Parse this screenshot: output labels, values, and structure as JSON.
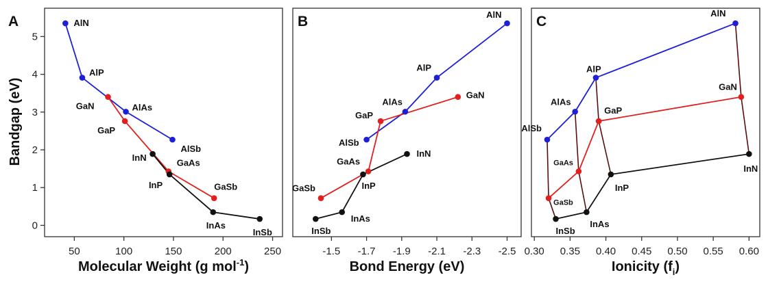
{
  "figure": {
    "ylabel": "Bandgap (eV)"
  },
  "chart_data": [
    {
      "panel": "A",
      "type": "line",
      "xlabel": "Molecular Weight (g mol",
      "xlabel_sup": "-1",
      "xlabel_tail": ")",
      "ylabel": "Bandgap (eV)",
      "xlim": [
        20,
        260
      ],
      "ylim": [
        -0.3,
        5.75
      ],
      "xticks": [
        50,
        100,
        150,
        200,
        250
      ],
      "yticks": [
        0,
        1,
        2,
        3,
        4,
        5
      ],
      "series": [
        {
          "color": "#1f1fd6",
          "points": [
            {
              "label": "AlN",
              "x": 41,
              "y": 5.35
            },
            {
              "label": "AlP",
              "x": 58,
              "y": 3.91
            },
            {
              "label": "AlAs",
              "x": 102,
              "y": 3.01
            },
            {
              "label": "AlSb",
              "x": 149,
              "y": 2.27
            }
          ]
        },
        {
          "color": "#e0201e",
          "points": [
            {
              "label": "GaN",
              "x": 84,
              "y": 3.4
            },
            {
              "label": "GaP",
              "x": 101,
              "y": 2.76
            },
            {
              "label": "GaAs",
              "x": 145,
              "y": 1.43
            },
            {
              "label": "GaSb",
              "x": 191,
              "y": 0.72
            }
          ]
        },
        {
          "color": "#111111",
          "points": [
            {
              "label": "InN",
              "x": 129,
              "y": 1.89
            },
            {
              "label": "InP",
              "x": 146,
              "y": 1.35
            },
            {
              "label": "InAs",
              "x": 190,
              "y": 0.35
            },
            {
              "label": "InSb",
              "x": 237,
              "y": 0.17
            }
          ]
        }
      ]
    },
    {
      "panel": "B",
      "type": "line",
      "xlabel": "Bond Energy (eV)",
      "xlim": [
        -1.28,
        -2.58
      ],
      "ylim": [
        -0.3,
        5.75
      ],
      "xticks": [
        -1.5,
        -1.7,
        -1.9,
        -2.1,
        -2.3,
        -2.5
      ],
      "xtick_labels": [
        "-1.5",
        "-1.7",
        "-1.9",
        "-2.1",
        "-2.3",
        "-2.5"
      ],
      "series": [
        {
          "color": "#1f1fd6",
          "points": [
            {
              "label": "AlN",
              "x": -2.5,
              "y": 5.35
            },
            {
              "label": "AlP",
              "x": -2.1,
              "y": 3.91
            },
            {
              "label": "AlAs",
              "x": -1.92,
              "y": 3.01
            },
            {
              "label": "AlSb",
              "x": -1.7,
              "y": 2.27
            }
          ]
        },
        {
          "color": "#e0201e",
          "points": [
            {
              "label": "GaN",
              "x": -2.22,
              "y": 3.4
            },
            {
              "label": "GaP",
              "x": -1.78,
              "y": 2.76
            },
            {
              "label": "GaAs",
              "x": -1.71,
              "y": 1.43
            },
            {
              "label": "GaSb",
              "x": -1.44,
              "y": 0.72
            }
          ]
        },
        {
          "color": "#111111",
          "points": [
            {
              "label": "InN",
              "x": -1.93,
              "y": 1.89
            },
            {
              "label": "InP",
              "x": -1.68,
              "y": 1.35
            },
            {
              "label": "InAs",
              "x": -1.56,
              "y": 0.35
            },
            {
              "label": "InSb",
              "x": -1.41,
              "y": 0.17
            }
          ]
        }
      ]
    },
    {
      "panel": "C",
      "type": "line",
      "xlabel": "Ionicity (f",
      "xlabel_sub": "i",
      "xlabel_tail": ")",
      "xlim": [
        0.296,
        0.615
      ],
      "ylim": [
        -0.3,
        5.75
      ],
      "xticks": [
        0.3,
        0.35,
        0.4,
        0.45,
        0.5,
        0.55,
        0.6
      ],
      "xtick_labels": [
        "0.30",
        "0.35",
        "0.40",
        "0.45",
        "0.50",
        "0.55",
        "0.60"
      ],
      "series": [
        {
          "color": "#1f1fd6",
          "points": [
            {
              "label": "AlSb",
              "x": 0.318,
              "y": 2.27
            },
            {
              "label": "AlAs",
              "x": 0.357,
              "y": 3.01
            },
            {
              "label": "AlP",
              "x": 0.386,
              "y": 3.91
            },
            {
              "label": "AlN",
              "x": 0.581,
              "y": 5.35
            }
          ]
        },
        {
          "color": "#e0201e",
          "points": [
            {
              "label": "GaSb",
              "x": 0.32,
              "y": 0.72
            },
            {
              "label": "GaAs",
              "x": 0.362,
              "y": 1.43
            },
            {
              "label": "GaP",
              "x": 0.39,
              "y": 2.76
            },
            {
              "label": "GaN",
              "x": 0.589,
              "y": 3.4
            }
          ]
        },
        {
          "color": "#111111",
          "points": [
            {
              "label": "InSb",
              "x": 0.33,
              "y": 0.17
            },
            {
              "label": "InAs",
              "x": 0.373,
              "y": 0.35
            },
            {
              "label": "InP",
              "x": 0.407,
              "y": 1.35
            },
            {
              "label": "InN",
              "x": 0.6,
              "y": 1.89
            }
          ]
        }
      ],
      "connectors": {
        "color": "#5a0d0d",
        "groups": [
          [
            "AlSb",
            "GaSb",
            "InSb"
          ],
          [
            "AlAs",
            "GaAs",
            "InAs"
          ],
          [
            "AlP",
            "GaP",
            "InP"
          ],
          [
            "AlN",
            "GaN",
            "InN"
          ]
        ]
      }
    }
  ]
}
